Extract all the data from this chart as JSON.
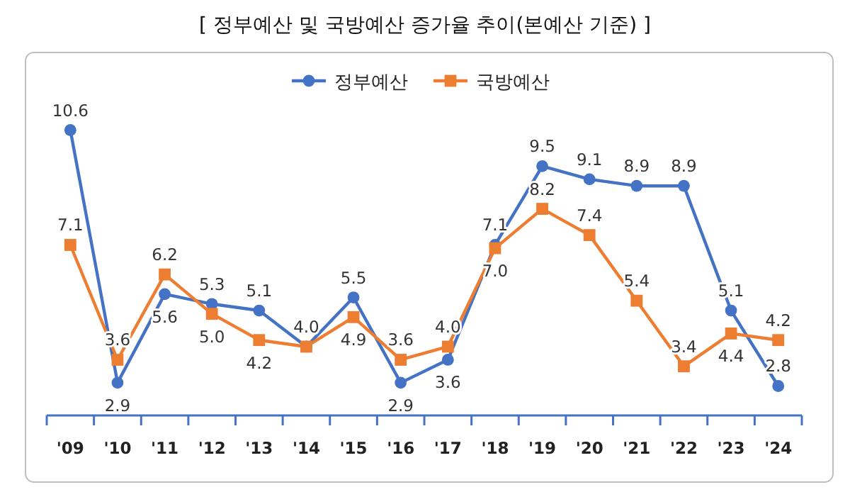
{
  "chart_data": {
    "type": "line",
    "title": "[ 정부예산 및 국방예산 증가율 추이(본예산 기준) ]",
    "categories": [
      "'09",
      "'10",
      "'11",
      "'12",
      "'13",
      "'14",
      "'15",
      "'16",
      "'17",
      "'18",
      "'19",
      "'20",
      "'21",
      "'22",
      "'23",
      "'24"
    ],
    "series": [
      {
        "name": "정부예산",
        "color": "#4472c4",
        "marker": "circle",
        "values": [
          10.6,
          2.9,
          5.6,
          5.3,
          5.1,
          4.0,
          5.5,
          2.9,
          3.6,
          7.1,
          9.5,
          9.1,
          8.9,
          8.9,
          5.1,
          2.8
        ],
        "value_labels": [
          "10.6",
          "2.9",
          "5.6",
          "5.3",
          "5.1",
          "4.0",
          "5.5",
          "2.9",
          "3.6",
          "7.1",
          "9.5",
          "9.1",
          "8.9",
          "8.9",
          "5.1",
          "2.8"
        ]
      },
      {
        "name": "국방예산",
        "color": "#ed7d31",
        "marker": "square",
        "values": [
          7.1,
          3.6,
          6.2,
          5.0,
          4.2,
          4.0,
          4.9,
          3.6,
          4.0,
          7.0,
          8.2,
          7.4,
          5.4,
          3.4,
          4.4,
          4.2
        ],
        "value_labels": [
          "7.1",
          "3.6",
          "6.2",
          "5.0",
          "4.2",
          null,
          "4.9",
          "3.6",
          "4.0",
          "7.0",
          "8.2",
          "7.4",
          "5.4",
          "3.4",
          "4.4",
          "4.2"
        ]
      }
    ],
    "tick_labels": "x",
    "legend": "top"
  }
}
